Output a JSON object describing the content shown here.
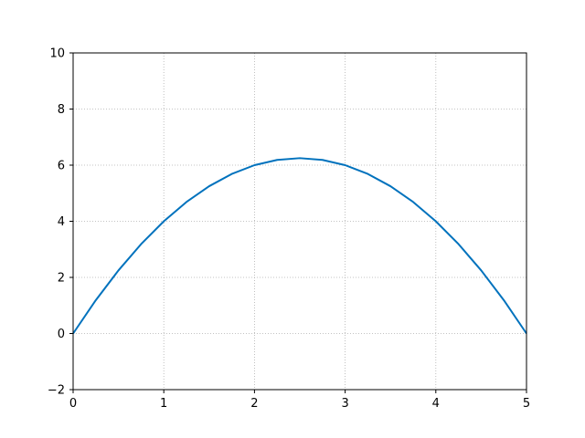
{
  "chart_data": {
    "type": "line",
    "title": "",
    "xlabel": "",
    "ylabel": "",
    "xlim": [
      0,
      5
    ],
    "ylim": [
      -2,
      10
    ],
    "x_ticks": [
      "0",
      "1",
      "2",
      "3",
      "4",
      "5"
    ],
    "y_ticks": [
      "−2",
      "0",
      "2",
      "4",
      "6",
      "8",
      "10"
    ],
    "grid": true,
    "legend": "none",
    "series": [
      {
        "color": "#0072bd",
        "x": [
          0,
          0.25,
          0.5,
          0.75,
          1,
          1.25,
          1.5,
          1.75,
          2,
          2.25,
          2.5,
          2.75,
          3,
          3.25,
          3.5,
          3.75,
          4,
          4.25,
          4.5,
          4.75,
          5
        ],
        "y": [
          0,
          1.1875,
          2.25,
          3.1875,
          4,
          4.6875,
          5.25,
          5.6875,
          6,
          6.1875,
          6.25,
          6.1875,
          6,
          5.6875,
          5.25,
          4.6875,
          4,
          3.1875,
          2.25,
          1.1875,
          0
        ]
      }
    ]
  }
}
